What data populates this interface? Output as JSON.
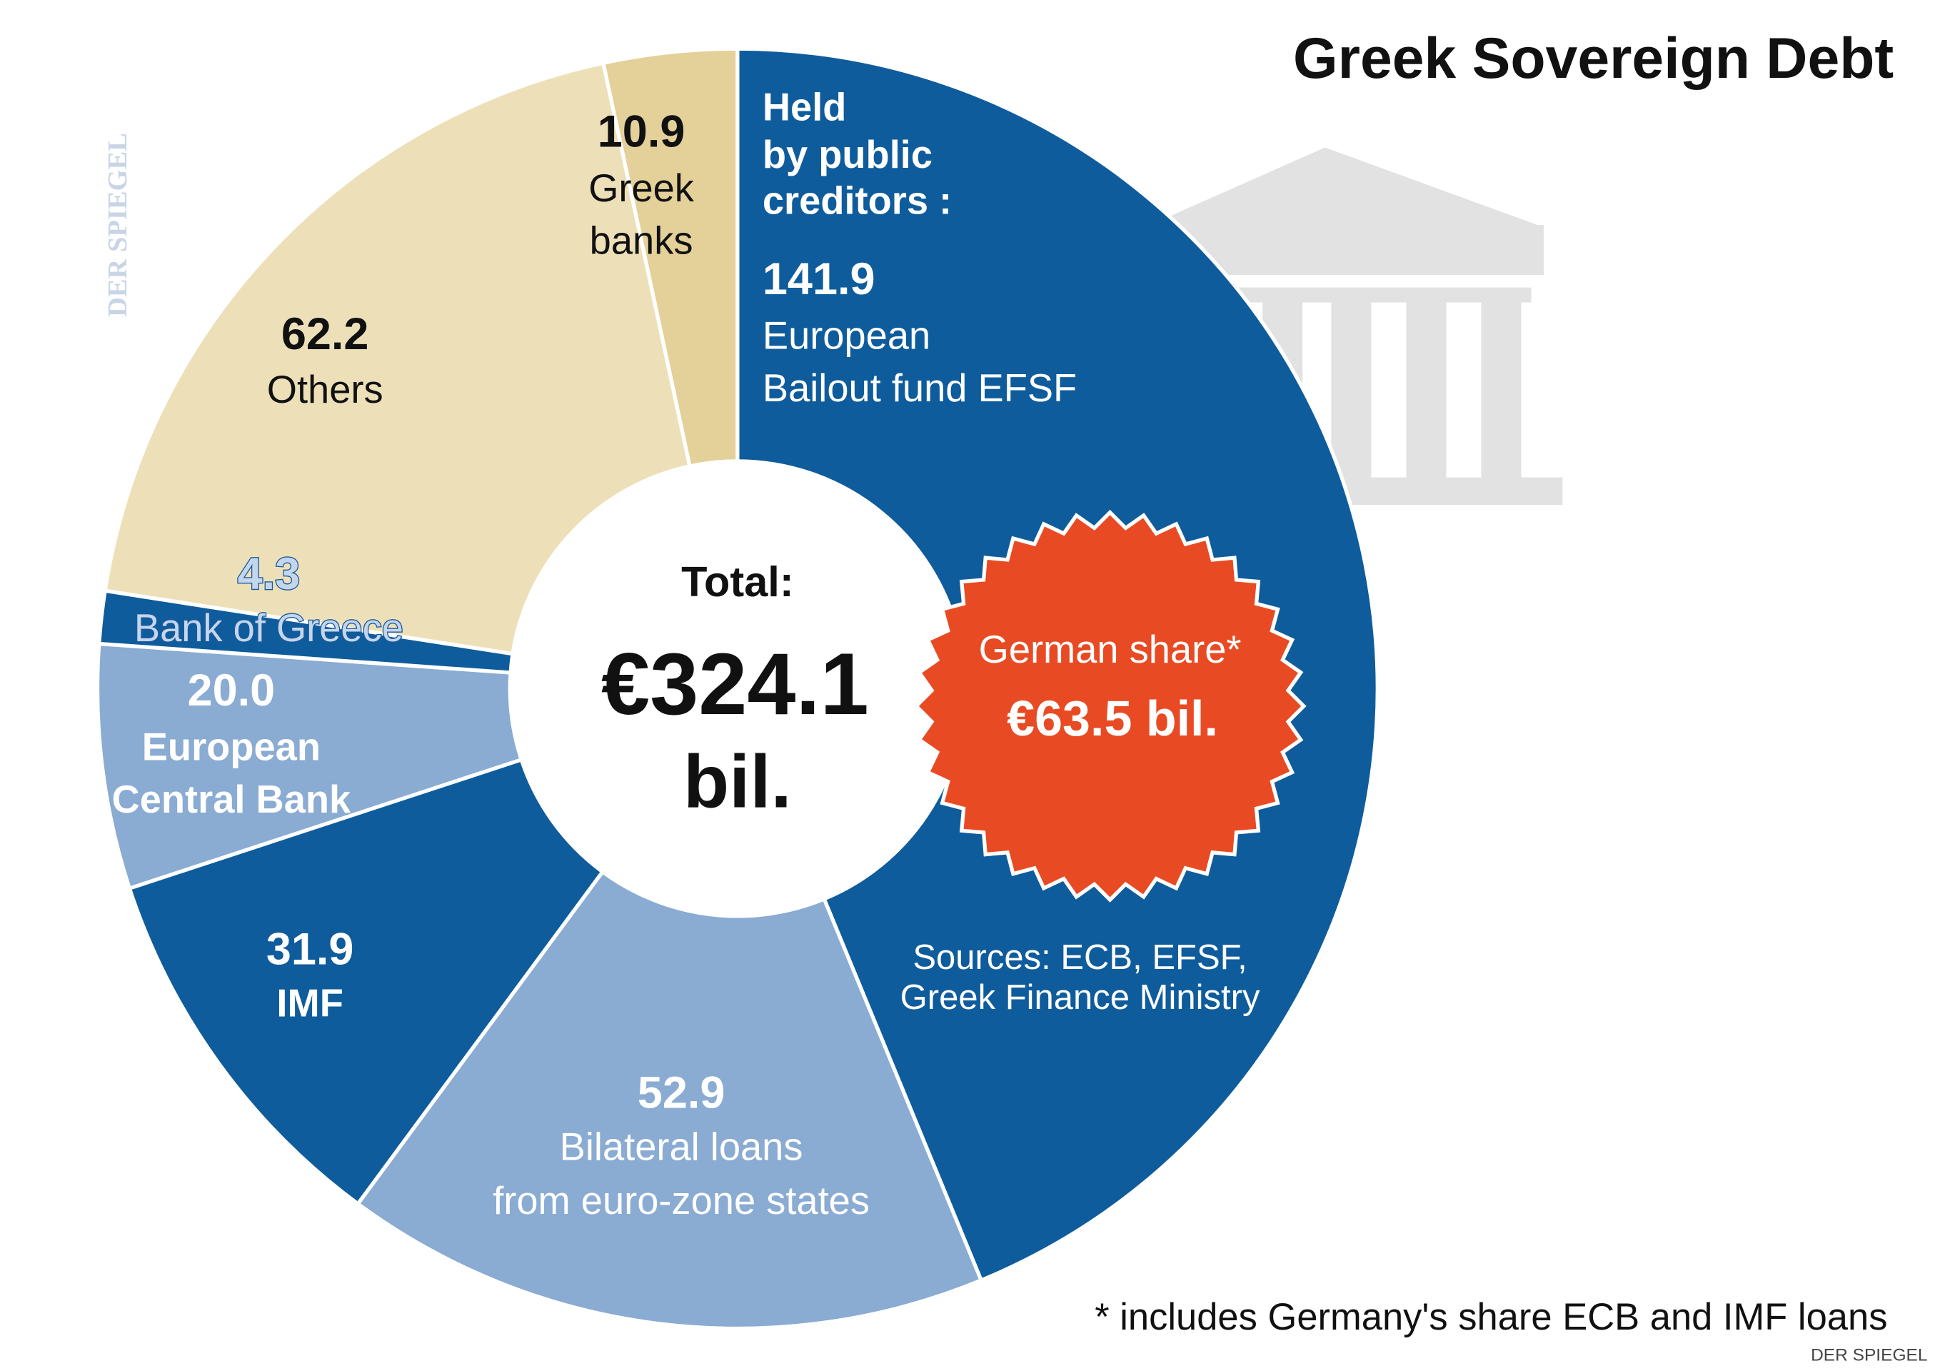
{
  "chart_data": {
    "type": "donut",
    "title": "Greek Sovereign Debt",
    "group_label": [
      "Held",
      "by public",
      "creditors :"
    ],
    "categories": [
      [
        "European",
        "Bailout fund EFSF"
      ],
      [
        "Bilateral loans",
        "from euro-zone states"
      ],
      [
        "IMF"
      ],
      [
        "European",
        "Central Bank"
      ],
      [
        "Bank of Greece"
      ],
      [
        "Others"
      ],
      [
        "Greek",
        "banks"
      ]
    ],
    "values": [
      141.9,
      52.9,
      31.9,
      20.0,
      4.3,
      62.2,
      10.9
    ],
    "value_labels": [
      "141.9",
      "52.9",
      "31.9",
      "20.0",
      "4.3",
      "62.2",
      "10.9"
    ],
    "colors": [
      "#0f5c9c",
      "#8aabd2",
      "#0f5c9c",
      "#8aabd2",
      "#0f5c9c",
      "#ede0b9",
      "#e4d199"
    ],
    "total_label": "Total:",
    "total": [
      "€324.1",
      "bil."
    ],
    "badge": [
      "German share*",
      "€63.5 bil."
    ],
    "sources": [
      "Sources: ECB, EFSF,",
      "Greek Finance Ministry"
    ],
    "footnote": "* includes Germany's share ECB and IMF loans",
    "credit": "DER SPIEGEL",
    "watermark": "DER SPIEGEL"
  }
}
